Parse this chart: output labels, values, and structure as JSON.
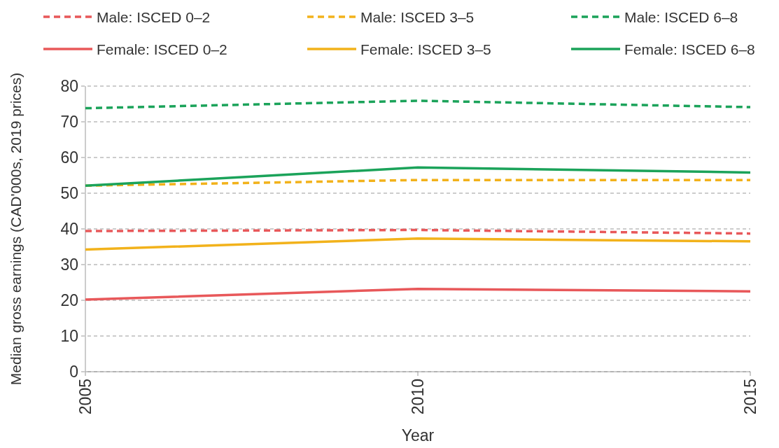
{
  "chart_data": {
    "type": "line",
    "xlabel": "Year",
    "ylabel": "Median gross earnings (CAD'000s, 2019 prices)",
    "x": [
      2005,
      2010,
      2015
    ],
    "xlim": [
      2005,
      2015
    ],
    "xticks": [
      2005,
      2010,
      2015
    ],
    "ylim": [
      0,
      80
    ],
    "yticks": [
      0,
      10,
      20,
      30,
      40,
      50,
      60,
      70,
      80
    ],
    "grid": "y",
    "legend": "top",
    "series": [
      {
        "name": "Male: ISCED 0–2",
        "color": "#e8585a",
        "line_style": "dashed",
        "values": [
          39.4,
          39.7,
          38.7
        ]
      },
      {
        "name": "Male: ISCED 3–5",
        "color": "#f2b21b",
        "line_style": "dashed",
        "values": [
          52.1,
          53.7,
          53.7
        ]
      },
      {
        "name": "Male: ISCED 6–8",
        "color": "#1ba35a",
        "line_style": "dashed",
        "values": [
          73.8,
          75.9,
          74.1
        ]
      },
      {
        "name": "Female: ISCED 0–2",
        "color": "#e8585a",
        "line_style": "solid",
        "values": [
          20.2,
          23.2,
          22.5
        ]
      },
      {
        "name": "Female: ISCED 3–5",
        "color": "#f2b21b",
        "line_style": "solid",
        "values": [
          34.2,
          37.3,
          36.5
        ]
      },
      {
        "name": "Female: ISCED 6–8",
        "color": "#1ba35a",
        "line_style": "solid",
        "values": [
          52.1,
          57.2,
          55.8
        ]
      }
    ]
  }
}
